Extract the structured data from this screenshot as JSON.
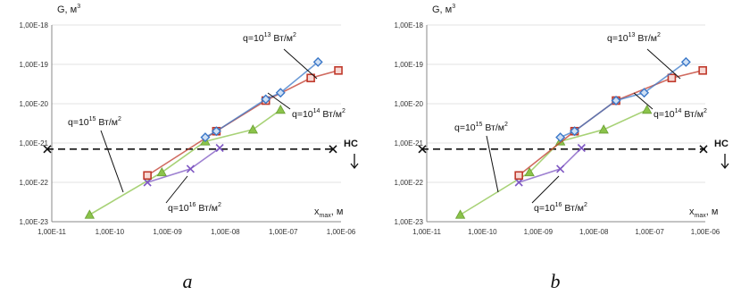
{
  "chart_data": [
    {
      "type": "line",
      "panel_label": "a",
      "ylabel": "G, м³",
      "xlabel": "x_max, м",
      "x_scale": "log",
      "y_scale": "log",
      "xlim": [
        1e-11,
        1e-06
      ],
      "ylim": [
        1e-23,
        1e-18
      ],
      "x_ticks": [
        "1,00E-11",
        "1,00E-10",
        "1,00E-09",
        "1,00E-08",
        "1,00E-07",
        "1,00E-06"
      ],
      "y_ticks": [
        "1,00E-23",
        "1,00E-22",
        "1,00E-21",
        "1,00E-20",
        "1,00E-19",
        "1,00E-18"
      ],
      "threshold": {
        "label": "НС",
        "y": 7e-22
      },
      "series": [
        {
          "name": "q=10¹³ Вт/м²",
          "color": "#3b78c8",
          "marker": "diamond",
          "points": [
            [
              4.5e-09,
              1.4e-21
            ],
            [
              7e-09,
              2e-21
            ],
            [
              5e-08,
              1.3e-20
            ],
            [
              9e-08,
              1.9e-20
            ],
            [
              4e-07,
              1.15e-19
            ]
          ]
        },
        {
          "name": "q=10¹⁴ Вт/м²",
          "color": "#c0392b",
          "marker": "square",
          "points": [
            [
              4.5e-10,
              1.5e-22
            ],
            [
              7e-09,
              2e-21
            ],
            [
              5e-08,
              1.2e-20
            ],
            [
              3e-07,
              4.5e-20
            ],
            [
              9e-07,
              7e-20
            ]
          ]
        },
        {
          "name": "q=10¹⁵ Вт/м²",
          "color": "#8bc34a",
          "marker": "triangle",
          "points": [
            [
              4.5e-11,
              1.5e-23
            ],
            [
              8e-10,
              1.8e-22
            ],
            [
              4.5e-09,
              1.1e-21
            ],
            [
              3e-08,
              2.2e-21
            ],
            [
              9e-08,
              7e-21
            ]
          ]
        },
        {
          "name": "q=10¹⁶ Вт/м²",
          "color": "#7e57c2",
          "marker": "x",
          "points": [
            [
              4.5e-10,
              1e-22
            ],
            [
              2.5e-09,
              2.2e-22
            ],
            [
              8e-09,
              7.5e-22
            ]
          ]
        }
      ]
    },
    {
      "type": "line",
      "panel_label": "b",
      "ylabel": "G, м³",
      "xlabel": "x_max, м",
      "x_scale": "log",
      "y_scale": "log",
      "xlim": [
        1e-11,
        1e-06
      ],
      "ylim": [
        1e-23,
        1e-18
      ],
      "x_ticks": [
        "1,00E-11",
        "1,00E-10",
        "1,00E-09",
        "1,00E-08",
        "1,00E-07",
        "1,00E-06"
      ],
      "y_ticks": [
        "1,00E-23",
        "1,00E-22",
        "1,00E-21",
        "1,00E-20",
        "1,00E-19",
        "1,00E-18"
      ],
      "threshold": {
        "label": "НС",
        "y": 7e-22
      },
      "series": [
        {
          "name": "q=10¹³ Вт/м²",
          "color": "#3b78c8",
          "marker": "diamond",
          "points": [
            [
              2.5e-09,
              1.4e-21
            ],
            [
              4.5e-09,
              2e-21
            ],
            [
              2.5e-08,
              1.2e-20
            ],
            [
              8e-08,
              1.9e-20
            ],
            [
              4.5e-07,
              1.15e-19
            ]
          ]
        },
        {
          "name": "q=10¹⁴ Вт/м²",
          "color": "#c0392b",
          "marker": "square",
          "points": [
            [
              4.5e-10,
              1.5e-22
            ],
            [
              4.5e-09,
              2e-21
            ],
            [
              2.5e-08,
              1.2e-20
            ],
            [
              2.5e-07,
              4.5e-20
            ],
            [
              9e-07,
              7e-20
            ]
          ]
        },
        {
          "name": "q=10¹⁵ Вт/м²",
          "color": "#8bc34a",
          "marker": "triangle",
          "points": [
            [
              4e-11,
              1.5e-23
            ],
            [
              7e-10,
              1.8e-22
            ],
            [
              2.5e-09,
              1.1e-21
            ],
            [
              1.5e-08,
              2.2e-21
            ],
            [
              9e-08,
              7e-21
            ]
          ]
        },
        {
          "name": "q=10¹⁶ Вт/м²",
          "color": "#7e57c2",
          "marker": "x",
          "points": [
            [
              4.5e-10,
              1e-22
            ],
            [
              2.5e-09,
              2.2e-22
            ],
            [
              6e-09,
              7.5e-22
            ]
          ]
        }
      ]
    }
  ],
  "annotations": {
    "q13": {
      "prefix": "q=10",
      "exp": "13",
      "unit": " Вт/м"
    },
    "q14": {
      "prefix": "q=10",
      "exp": "14",
      "unit": " Вт/м"
    },
    "q15": {
      "prefix": "q=10",
      "exp": "15",
      "unit": " Вт/м"
    },
    "q16": {
      "prefix": "q=10",
      "exp": "16",
      "unit": " Вт/м"
    },
    "sq": "2"
  },
  "axis_text": {
    "g_prefix": "G, м",
    "g_exp": "3",
    "x_main": "x",
    "x_sub": "max",
    "x_unit": ", м"
  }
}
